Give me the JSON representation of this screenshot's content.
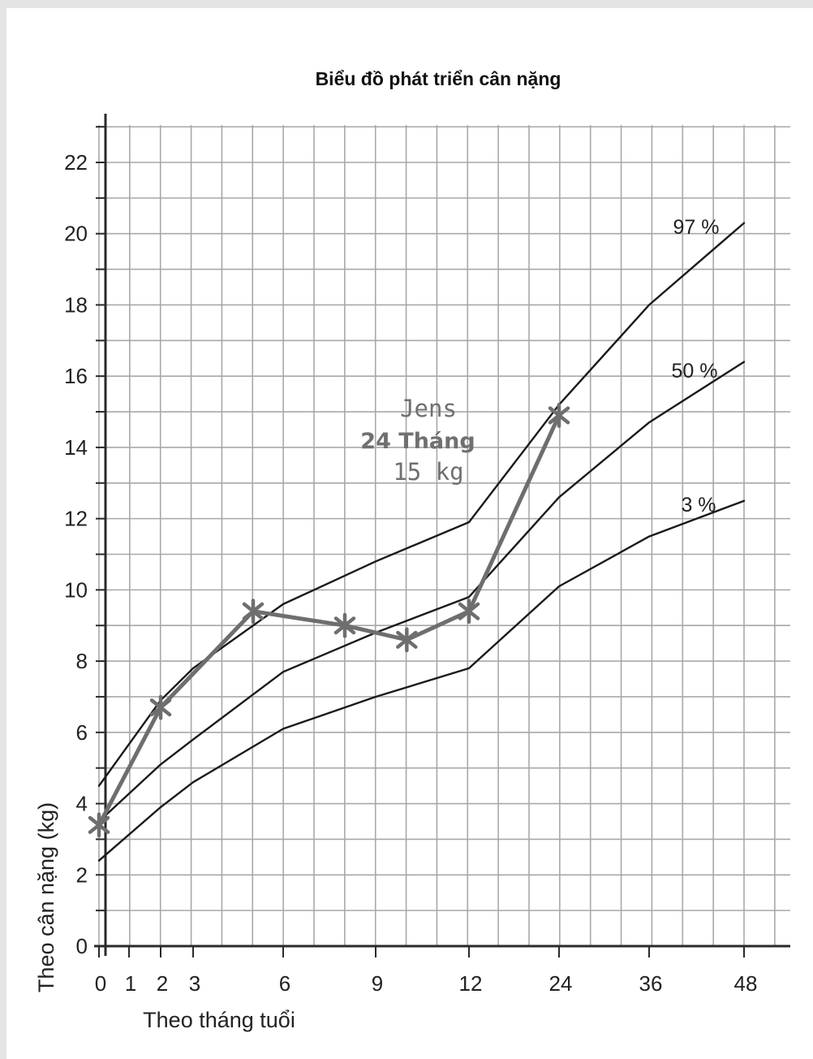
{
  "chart_data": {
    "type": "line",
    "title": "Biểu đồ phát triển cân nặng",
    "xlabel": "Theo tháng tuổi",
    "ylabel": "Theo cân nặng (kg)",
    "x_tick_labels": [
      "0",
      "1",
      "2",
      "3",
      "6",
      "9",
      "12",
      "24",
      "36",
      "48"
    ],
    "x_tick_values": [
      0,
      1,
      2,
      3,
      6,
      9,
      12,
      24,
      36,
      48
    ],
    "x_scale": "non-uniform (ordinal tick spacing)",
    "y_ticks": [
      0,
      2,
      4,
      6,
      8,
      10,
      12,
      14,
      16,
      18,
      20,
      22
    ],
    "ylim": [
      0,
      23
    ],
    "grid": true,
    "series": [
      {
        "name": "97 %",
        "label": "97 %",
        "color": "#1a1a1a",
        "x": [
          0,
          2,
          3,
          6,
          9,
          12,
          24,
          36,
          48
        ],
        "values": [
          4.5,
          6.9,
          7.8,
          9.6,
          10.8,
          11.9,
          15.2,
          18.0,
          20.3
        ]
      },
      {
        "name": "50 %",
        "label": "50 %",
        "color": "#1a1a1a",
        "x": [
          0,
          2,
          3,
          6,
          9,
          12,
          24,
          36,
          48
        ],
        "values": [
          3.5,
          5.1,
          5.8,
          7.7,
          8.8,
          9.8,
          12.6,
          14.7,
          16.4
        ]
      },
      {
        "name": "3 %",
        "label": "3 %",
        "color": "#1a1a1a",
        "x": [
          0,
          2,
          3,
          6,
          9,
          12,
          24,
          36,
          48
        ],
        "values": [
          2.4,
          3.9,
          4.6,
          6.1,
          7.0,
          7.8,
          10.1,
          11.5,
          12.5
        ]
      },
      {
        "name": "Jens",
        "color": "#6e6e6e",
        "x": [
          0,
          2,
          5,
          8,
          10,
          12,
          24
        ],
        "values": [
          3.4,
          6.7,
          9.4,
          9.0,
          8.6,
          9.4,
          14.9
        ]
      }
    ],
    "annotation": {
      "line1": "Jens",
      "line2": "24 Tháng",
      "line3": "15 kg"
    }
  }
}
